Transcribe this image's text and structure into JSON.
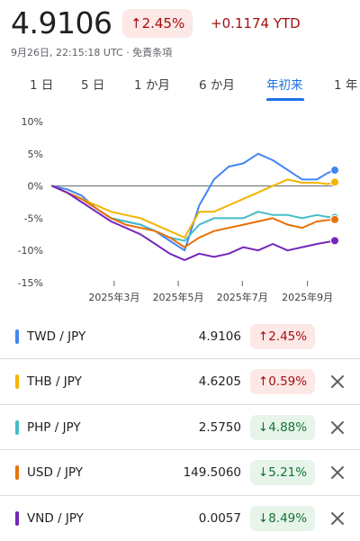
{
  "header": {
    "price": "4.9106",
    "change_badge": "↑2.45%",
    "change_abs": "+0.1174 YTD",
    "subline": "9月26日, 22:15:18 UTC · 免責条項"
  },
  "tabs": [
    {
      "label": "1 日",
      "active": false
    },
    {
      "label": "5 日",
      "active": false
    },
    {
      "label": "1 か月",
      "active": false
    },
    {
      "label": "6 か月",
      "active": false
    },
    {
      "label": "年初来",
      "active": true
    },
    {
      "label": "1 年",
      "active": false
    }
  ],
  "chart_data": {
    "type": "line",
    "title": "",
    "xlabel": "",
    "ylabel": "",
    "ylim": [
      -15,
      10
    ],
    "y_ticks": [
      "10%",
      "5%",
      "0%",
      "-5%",
      "-10%",
      "-15%"
    ],
    "y_tick_values": [
      10,
      5,
      0,
      -5,
      -10,
      -15
    ],
    "x_tick_labels": [
      "2025年3月",
      "2025年5月",
      "2025年7月",
      "2025年9月"
    ],
    "x_tick_values": [
      59,
      120,
      181,
      243
    ],
    "x_range": [
      0,
      269
    ],
    "grid": false,
    "baseline": 0,
    "x": [
      0,
      14,
      28,
      42,
      56,
      70,
      84,
      98,
      112,
      126,
      140,
      154,
      168,
      182,
      196,
      210,
      224,
      238,
      252,
      262,
      269
    ],
    "series": [
      {
        "color": "#4285f4",
        "values": [
          0,
          -0.5,
          -1.5,
          -3.5,
          -5,
          -5.5,
          -6,
          -7,
          -8.5,
          -10,
          -3,
          1,
          3,
          3.5,
          5,
          4,
          2.5,
          1,
          1,
          2,
          2.45
        ]
      },
      {
        "color": "#f4b400",
        "values": [
          0,
          -1,
          -2,
          -3,
          -4,
          -4.5,
          -5,
          -6,
          -7,
          -8,
          -4,
          -4,
          -3,
          -2,
          -1,
          0,
          1,
          0.5,
          0.5,
          0.3,
          0.59
        ]
      },
      {
        "color": "#46bdc6",
        "values": [
          0,
          -1,
          -2,
          -3.5,
          -5,
          -5.5,
          -6,
          -7,
          -8,
          -8.5,
          -6,
          -5,
          -5,
          -5,
          -4,
          -4.5,
          -4.5,
          -5,
          -4.5,
          -4.8,
          -4.88
        ]
      },
      {
        "color": "#e8710a",
        "values": [
          0,
          -1,
          -2,
          -3.5,
          -5,
          -6,
          -6.5,
          -7,
          -8,
          -9.5,
          -8,
          -7,
          -6.5,
          -6,
          -5.5,
          -5,
          -6,
          -6.5,
          -5.5,
          -5.3,
          -5.21
        ]
      },
      {
        "color": "#7627bb",
        "values": [
          0,
          -1,
          -2.5,
          -4,
          -5.5,
          -6.5,
          -7.5,
          -9,
          -10.5,
          -11.5,
          -10.5,
          -11,
          -10.5,
          -9.5,
          -10,
          -9,
          -10,
          -9.5,
          -9,
          -8.7,
          -8.49
        ]
      }
    ]
  },
  "rows": [
    {
      "pair": "TWD / JPY",
      "value": "4.9106",
      "change": "↑2.45%",
      "direction": "up",
      "color": "#4285f4",
      "removable": false
    },
    {
      "pair": "THB / JPY",
      "value": "4.6205",
      "change": "↑0.59%",
      "direction": "up",
      "color": "#f4b400",
      "removable": true
    },
    {
      "pair": "PHP / JPY",
      "value": "2.5750",
      "change": "↓4.88%",
      "direction": "down",
      "color": "#46bdc6",
      "removable": true
    },
    {
      "pair": "USD / JPY",
      "value": "149.5060",
      "change": "↓5.21%",
      "direction": "down",
      "color": "#e8710a",
      "removable": true
    },
    {
      "pair": "VND / JPY",
      "value": "0.0057",
      "change": "↓8.49%",
      "direction": "down",
      "color": "#7627bb",
      "removable": true
    }
  ],
  "icons": {
    "remove": "close-icon"
  }
}
